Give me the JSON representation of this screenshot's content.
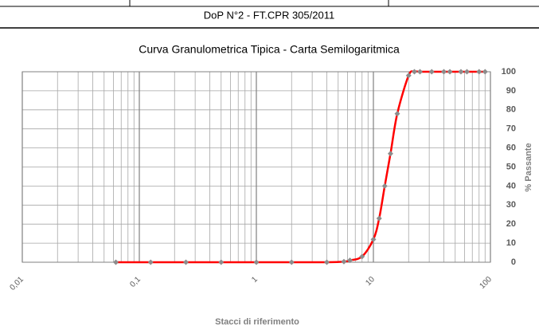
{
  "header": "DoP N°2 - FT.CPR 305/2011",
  "chart_data": {
    "type": "line",
    "title": "Curva Granulometrica Tipica  - Carta Semilogaritmica",
    "xlabel": "Stacci di riferimento",
    "ylabel": "% Passante",
    "x": [
      0.063,
      0.125,
      0.25,
      0.5,
      1,
      2,
      4,
      5.6,
      6.3,
      8,
      10,
      11.2,
      12.5,
      14,
      16,
      20,
      22.4,
      25,
      31.5,
      40,
      45,
      56,
      63,
      80,
      90
    ],
    "series": [
      {
        "color": "#ff0000",
        "marker_color": "#8c8c8c",
        "values": [
          0,
          0,
          0,
          0,
          0,
          0,
          0,
          0.3,
          1,
          3,
          12,
          23,
          40,
          57,
          78,
          98,
          100,
          100,
          100,
          100,
          100,
          100,
          100,
          100,
          100
        ]
      }
    ],
    "xscale": "log",
    "xlim": [
      0.01,
      100
    ],
    "xticks": [
      {
        "value": 0.01,
        "label": "0,01"
      },
      {
        "value": 0.1,
        "label": "0,1"
      },
      1,
      10,
      100
    ],
    "ylim": [
      0,
      100
    ],
    "yticks": [
      0,
      10,
      20,
      30,
      40,
      50,
      60,
      70,
      80,
      90,
      100
    ],
    "grid": true
  }
}
